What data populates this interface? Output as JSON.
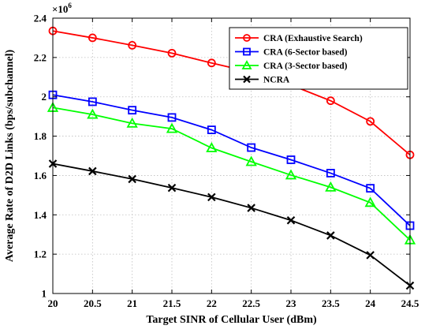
{
  "chart_data": {
    "type": "line",
    "title": "",
    "xlabel": "Target SINR of Cellular User (dBm)",
    "ylabel": "Average Rate of D2D Links (bps/subchannel)",
    "y_multiplier": "×10",
    "y_multiplier_exp": "6",
    "x": [
      20,
      20.5,
      21,
      21.5,
      22,
      22.5,
      23,
      23.5,
      24,
      24.5
    ],
    "x_tick_labels": [
      "20",
      "20.5",
      "21",
      "21.5",
      "22",
      "22.5",
      "23",
      "23.5",
      "24",
      "24.5"
    ],
    "y_ticks": [
      1,
      1.2,
      1.4,
      1.6,
      1.8,
      2,
      2.2,
      2.4
    ],
    "y_tick_labels": [
      "1",
      "1.2",
      "1.4",
      "1.6",
      "1.8",
      "2",
      "2.2",
      "2.4"
    ],
    "xlim": [
      20,
      24.5
    ],
    "ylim": [
      1,
      2.4
    ],
    "grid": true,
    "legend_position": "top-right",
    "series": [
      {
        "name": "CRA (Exhaustive Search)",
        "color": "#ff0000",
        "marker": "circle",
        "values": [
          2.335,
          2.3,
          2.262,
          2.222,
          2.172,
          2.125,
          2.06,
          1.98,
          1.875,
          1.705
        ]
      },
      {
        "name": "CRA (6-Sector based)",
        "color": "#0000ff",
        "marker": "square",
        "values": [
          2.01,
          1.975,
          1.932,
          1.895,
          1.832,
          1.742,
          1.68,
          1.612,
          1.535,
          1.345
        ]
      },
      {
        "name": "CRA (3-Sector based)",
        "color": "#00ff00",
        "marker": "triangle",
        "values": [
          1.945,
          1.91,
          1.865,
          1.838,
          1.74,
          1.67,
          1.602,
          1.54,
          1.462,
          1.272
        ]
      },
      {
        "name": "NCRA",
        "color": "#000000",
        "marker": "x",
        "values": [
          1.66,
          1.622,
          1.582,
          1.537,
          1.49,
          1.435,
          1.372,
          1.295,
          1.195,
          1.04
        ]
      }
    ]
  }
}
